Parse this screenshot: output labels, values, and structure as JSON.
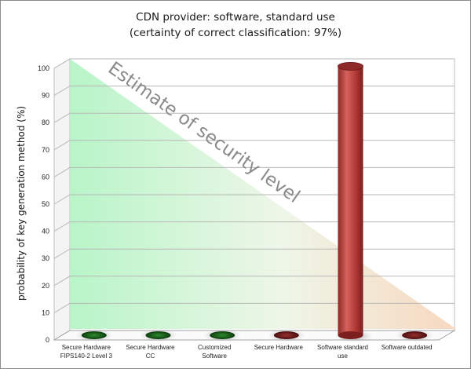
{
  "chart_data": {
    "type": "bar",
    "title": "CDN provider: software, standard use",
    "subtitle": "(certainty of correct classification: 97%)",
    "ylabel": "probability of key generation method (%)",
    "xlabel": "",
    "ylim": [
      0,
      100
    ],
    "yticks": [
      "0",
      "10",
      "20",
      "30",
      "40",
      "50",
      "60",
      "70",
      "80",
      "90",
      "100"
    ],
    "grid": true,
    "categories": [
      [
        "Secure Hardware",
        "FIPS140-2 Level 3"
      ],
      [
        "Secure Hardware",
        "CC"
      ],
      [
        "Customized",
        "Software"
      ],
      [
        "Secure Hardware"
      ],
      [
        "Software standard",
        "use"
      ],
      [
        "Software outdated"
      ]
    ],
    "values": [
      0,
      0,
      0,
      0,
      99,
      0
    ],
    "bar_colors": [
      "#1e6b1e",
      "#1e6b1e",
      "#1e6b1e",
      "#7a1e1e",
      "#b23a36",
      "#7a1e1e"
    ],
    "annotation": "Estimate of security level"
  },
  "colors": {
    "gradient_green": "#b8f5c8",
    "gradient_orange": "#f8d8c0",
    "bar_red": "#b23a36",
    "bar_green": "#1e6b1e",
    "bar_darkred": "#7a1e1e"
  }
}
